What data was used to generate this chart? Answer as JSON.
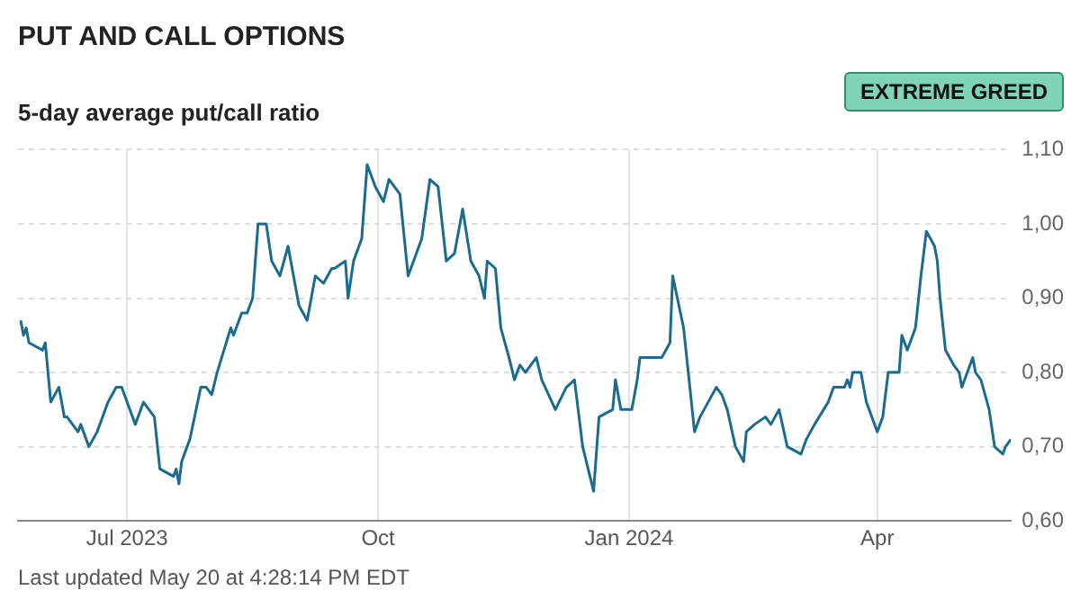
{
  "chart_data": {
    "type": "line",
    "title": "PUT AND CALL OPTIONS",
    "subtitle": "5-day average put/call ratio",
    "annotations": [
      "EXTREME GREED",
      "Last updated May 20 at 4:28:14 PM EDT"
    ],
    "x": [
      "2023-05-23",
      "2023-05-24",
      "2023-05-25",
      "2023-05-26",
      "2023-05-31",
      "2023-06-01",
      "2023-06-03",
      "2023-06-06",
      "2023-06-08",
      "2023-06-09",
      "2023-06-13",
      "2023-06-14",
      "2023-06-17",
      "2023-06-20",
      "2023-06-22",
      "2023-06-24",
      "2023-06-27",
      "2023-06-29",
      "2023-07-04",
      "2023-07-07",
      "2023-07-11",
      "2023-07-13",
      "2023-07-18",
      "2023-07-19",
      "2023-07-20",
      "2023-07-21",
      "2023-07-24",
      "2023-07-28",
      "2023-07-30",
      "2023-08-01",
      "2023-08-03",
      "2023-08-08",
      "2023-08-09",
      "2023-08-12",
      "2023-08-14",
      "2023-08-16",
      "2023-08-18",
      "2023-08-21",
      "2023-08-23",
      "2023-08-26",
      "2023-08-29",
      "2023-09-02",
      "2023-09-05",
      "2023-09-07",
      "2023-09-08",
      "2023-09-11",
      "2023-09-14",
      "2023-09-15",
      "2023-09-19",
      "2023-09-20",
      "2023-09-22",
      "2023-09-25",
      "2023-09-27",
      "2023-09-30",
      "2023-10-03",
      "2023-10-05",
      "2023-10-09",
      "2023-10-12",
      "2023-10-17",
      "2023-10-20",
      "2023-10-23",
      "2023-10-26",
      "2023-10-29",
      "2023-11-01",
      "2023-11-04",
      "2023-11-07",
      "2023-11-09",
      "2023-11-10",
      "2023-11-13",
      "2023-11-15",
      "2023-11-18",
      "2023-11-20",
      "2023-11-22",
      "2023-11-24",
      "2023-11-28",
      "2023-11-30",
      "2023-12-05",
      "2023-12-09",
      "2023-12-12",
      "2023-12-15",
      "2023-12-17",
      "2023-12-19",
      "2023-12-21",
      "2023-12-26",
      "2023-12-27",
      "2023-12-29",
      "2024-01-02",
      "2024-01-04",
      "2024-01-05",
      "2024-01-09",
      "2024-01-11",
      "2024-01-13",
      "2024-01-16",
      "2024-01-17",
      "2024-01-21",
      "2024-01-25",
      "2024-01-27",
      "2024-01-30",
      "2024-02-02",
      "2024-02-04",
      "2024-02-06",
      "2024-02-09",
      "2024-02-12",
      "2024-02-13",
      "2024-02-16",
      "2024-02-20",
      "2024-02-22",
      "2024-02-25",
      "2024-02-28",
      "2024-03-04",
      "2024-03-06",
      "2024-03-09",
      "2024-03-14",
      "2024-03-16",
      "2024-03-20",
      "2024-03-21",
      "2024-03-22",
      "2024-03-23",
      "2024-03-26",
      "2024-03-28",
      "2024-04-01",
      "2024-04-03",
      "2024-04-05",
      "2024-04-09",
      "2024-04-10",
      "2024-04-12",
      "2024-04-15",
      "2024-04-17",
      "2024-04-19",
      "2024-04-22",
      "2024-04-23",
      "2024-04-24",
      "2024-04-26",
      "2024-04-29",
      "2024-05-01",
      "2024-05-02",
      "2024-05-06",
      "2024-05-07",
      "2024-05-09",
      "2024-05-12",
      "2024-05-14",
      "2024-05-17",
      "2024-05-18",
      "2024-05-20"
    ],
    "series": [
      {
        "color": "#1b6b8f",
        "values": [
          0.87,
          0.85,
          0.86,
          0.84,
          0.83,
          0.84,
          0.76,
          0.78,
          0.74,
          0.74,
          0.72,
          0.73,
          0.7,
          0.72,
          0.74,
          0.76,
          0.78,
          0.78,
          0.73,
          0.76,
          0.74,
          0.67,
          0.66,
          0.67,
          0.65,
          0.68,
          0.71,
          0.78,
          0.78,
          0.77,
          0.8,
          0.86,
          0.85,
          0.88,
          0.88,
          0.9,
          1.0,
          1.0,
          0.95,
          0.93,
          0.97,
          0.89,
          0.87,
          0.91,
          0.93,
          0.92,
          0.94,
          0.94,
          0.95,
          0.9,
          0.95,
          0.98,
          1.08,
          1.05,
          1.03,
          1.06,
          1.04,
          0.93,
          0.98,
          1.06,
          1.05,
          0.95,
          0.96,
          1.02,
          0.95,
          0.93,
          0.9,
          0.95,
          0.94,
          0.86,
          0.82,
          0.79,
          0.81,
          0.8,
          0.82,
          0.79,
          0.75,
          0.78,
          0.79,
          0.7,
          0.67,
          0.64,
          0.74,
          0.75,
          0.79,
          0.75,
          0.75,
          0.79,
          0.82,
          0.82,
          0.82,
          0.82,
          0.84,
          0.93,
          0.86,
          0.72,
          0.74,
          0.76,
          0.78,
          0.77,
          0.75,
          0.7,
          0.68,
          0.72,
          0.73,
          0.74,
          0.73,
          0.75,
          0.7,
          0.69,
          0.71,
          0.73,
          0.76,
          0.78,
          0.78,
          0.79,
          0.78,
          0.8,
          0.8,
          0.76,
          0.72,
          0.74,
          0.8,
          0.8,
          0.85,
          0.83,
          0.86,
          0.93,
          0.99,
          0.97,
          0.95,
          0.9,
          0.83,
          0.81,
          0.8,
          0.78,
          0.82,
          0.8,
          0.79,
          0.75,
          0.7,
          0.69,
          0.7,
          0.71
        ]
      }
    ],
    "xlim": [
      "2023-05-22",
      "2024-05-20"
    ],
    "xticks": [
      {
        "value": "2023-07-01",
        "label": "Jul 2023"
      },
      {
        "value": "2023-10-01",
        "label": "Oct"
      },
      {
        "value": "2024-01-01",
        "label": "Jan 2024"
      },
      {
        "value": "2024-04-01",
        "label": "Apr"
      }
    ],
    "ylim": [
      0.6,
      1.1
    ],
    "yticks": [
      {
        "value": 0.6,
        "label": "0,60"
      },
      {
        "value": 0.7,
        "label": "0,70"
      },
      {
        "value": 0.8,
        "label": "0,80"
      },
      {
        "value": 0.9,
        "label": "0,90"
      },
      {
        "value": 1.0,
        "label": "1,00"
      },
      {
        "value": 1.1,
        "label": "1,10"
      }
    ],
    "grid": true,
    "legend": false,
    "marker": "none",
    "line_style": "solid"
  }
}
